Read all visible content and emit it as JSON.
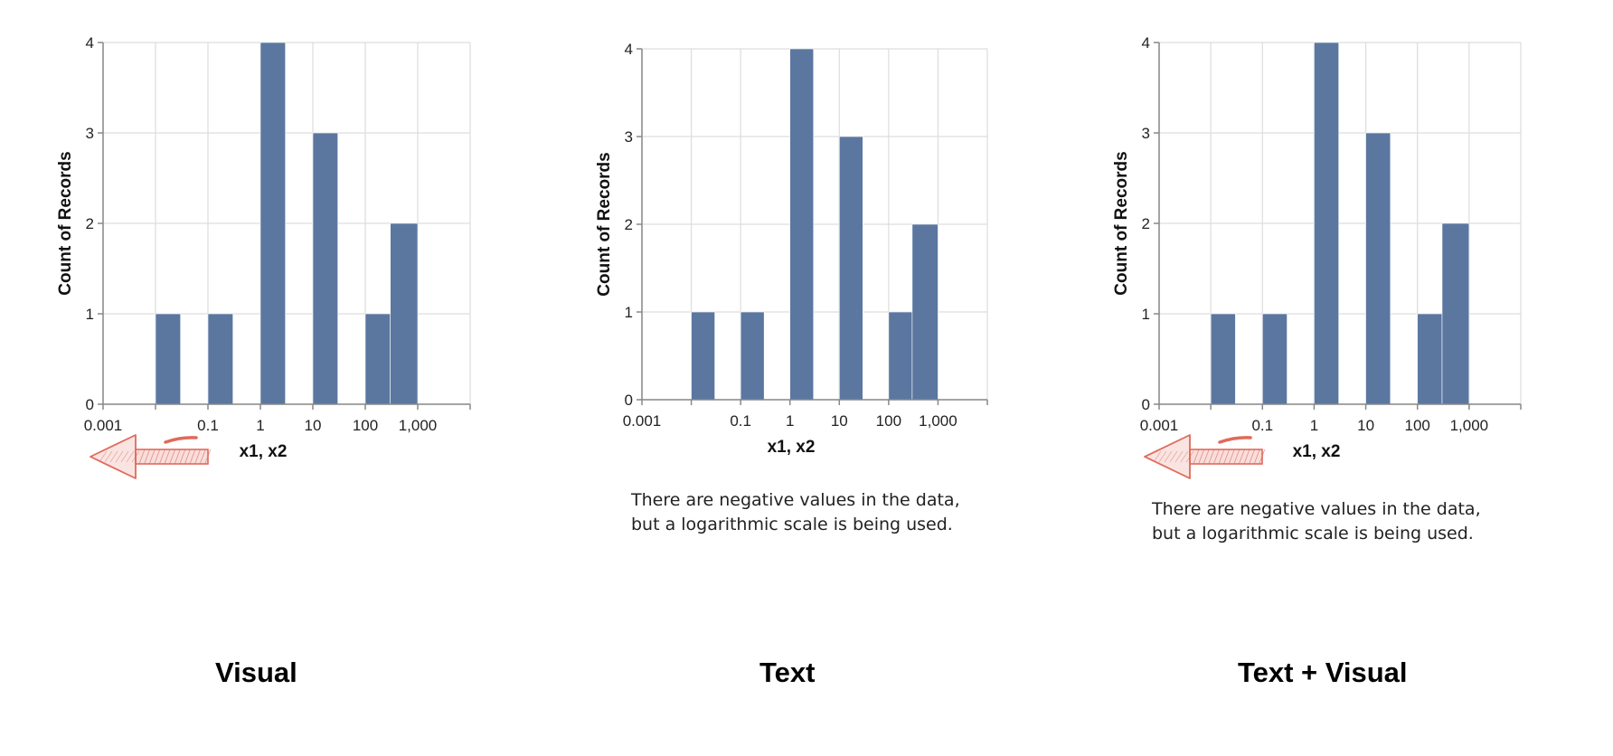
{
  "chart_data": [
    {
      "type": "bar",
      "xscale": "log",
      "bins": [
        {
          "x0": 0.01,
          "x1": 0.03,
          "count": 1
        },
        {
          "x0": 0.1,
          "x1": 0.3,
          "count": 1
        },
        {
          "x0": 1,
          "x1": 3,
          "count": 4
        },
        {
          "x0": 10,
          "x1": 30,
          "count": 3
        },
        {
          "x0": 100,
          "x1": 300,
          "count": 1
        },
        {
          "x0": 300,
          "x1": 1000,
          "count": 2
        }
      ],
      "xticks": [
        "0.001",
        "0.1",
        "1",
        "10",
        "100",
        "1,000"
      ],
      "yticks": [
        "0",
        "1",
        "2",
        "3",
        "4"
      ],
      "xlabel": "x1, x2",
      "ylabel": "Count of Records",
      "ylim": [
        0,
        4
      ],
      "xlim": [
        0.001,
        10000
      ],
      "grid": true,
      "bar_color": "#5b77a0",
      "annotation": "arrow-to-left-with-minus-sign",
      "note": [],
      "caption": "Visual"
    },
    {
      "type": "bar",
      "xscale": "log",
      "bins": [
        {
          "x0": 0.01,
          "x1": 0.03,
          "count": 1
        },
        {
          "x0": 0.1,
          "x1": 0.3,
          "count": 1
        },
        {
          "x0": 1,
          "x1": 3,
          "count": 4
        },
        {
          "x0": 10,
          "x1": 30,
          "count": 3
        },
        {
          "x0": 100,
          "x1": 300,
          "count": 1
        },
        {
          "x0": 300,
          "x1": 1000,
          "count": 2
        }
      ],
      "xticks": [
        "0.001",
        "0.1",
        "1",
        "10",
        "100",
        "1,000"
      ],
      "yticks": [
        "0",
        "1",
        "2",
        "3",
        "4"
      ],
      "xlabel": "x1, x2",
      "ylabel": "Count of Records",
      "ylim": [
        0,
        4
      ],
      "xlim": [
        0.001,
        10000
      ],
      "grid": true,
      "bar_color": "#5b77a0",
      "annotation": "",
      "note": [
        "There are negative values in the data,",
        "but a logarithmic scale is being used."
      ],
      "caption": "Text"
    },
    {
      "type": "bar",
      "xscale": "log",
      "bins": [
        {
          "x0": 0.01,
          "x1": 0.03,
          "count": 1
        },
        {
          "x0": 0.1,
          "x1": 0.3,
          "count": 1
        },
        {
          "x0": 1,
          "x1": 3,
          "count": 4
        },
        {
          "x0": 10,
          "x1": 30,
          "count": 3
        },
        {
          "x0": 100,
          "x1": 300,
          "count": 1
        },
        {
          "x0": 300,
          "x1": 1000,
          "count": 2
        }
      ],
      "xticks": [
        "0.001",
        "0.1",
        "1",
        "10",
        "100",
        "1,000"
      ],
      "yticks": [
        "0",
        "1",
        "2",
        "3",
        "4"
      ],
      "xlabel": "x1, x2",
      "ylabel": "Count of Records",
      "ylim": [
        0,
        4
      ],
      "xlim": [
        0.001,
        10000
      ],
      "grid": true,
      "bar_color": "#5b77a0",
      "annotation": "arrow-to-left-with-minus-sign",
      "note": [
        "There are negative values in the data,",
        "but a logarithmic scale is being used."
      ],
      "caption": "Text + Visual"
    }
  ],
  "colors": {
    "grid": "#dddddd",
    "axis": "#888888",
    "annotation": "#e06a5a"
  }
}
